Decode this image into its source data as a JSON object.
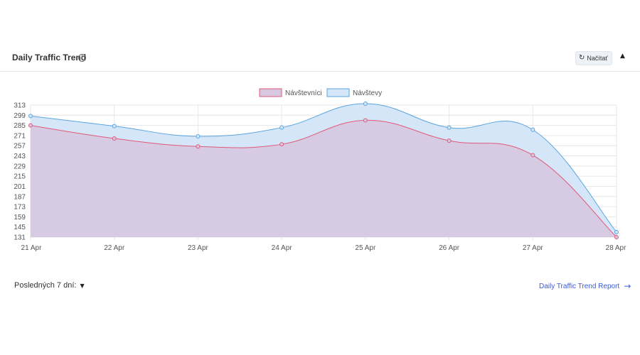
{
  "header": {
    "title": "Daily Traffic Trend",
    "info_icon": "info-icon",
    "reload_label": "Načítať",
    "reload_icon": "refresh-icon",
    "collapse_icon": "triangle-up-icon"
  },
  "footer": {
    "range_label": "Posledných 7 dní:",
    "range_caret": "▼",
    "report_link": "Daily Traffic Trend Report",
    "report_arrow": "→"
  },
  "chart_data": {
    "type": "area",
    "categories": [
      "21 Apr",
      "22 Apr",
      "23 Apr",
      "24 Apr",
      "25 Apr",
      "26 Apr",
      "27 Apr",
      "28 Apr"
    ],
    "y_ticks": [
      131,
      145,
      159,
      173,
      187,
      201,
      215,
      229,
      243,
      257,
      271,
      285,
      299,
      313
    ],
    "ylim": [
      131,
      313
    ],
    "grid": true,
    "legend_position": "top-center",
    "series": [
      {
        "name": "Návštevníci",
        "values": [
          285,
          267,
          256,
          259,
          292,
          264,
          244,
          131
        ],
        "line_color": "#e05a79",
        "fill_color": "#d7c7e0"
      },
      {
        "name": "Návštevy",
        "values": [
          298,
          284,
          270,
          282,
          315,
          282,
          279,
          138
        ],
        "line_color": "#5aa5e0",
        "fill_color": "#d4e6f7"
      }
    ]
  }
}
